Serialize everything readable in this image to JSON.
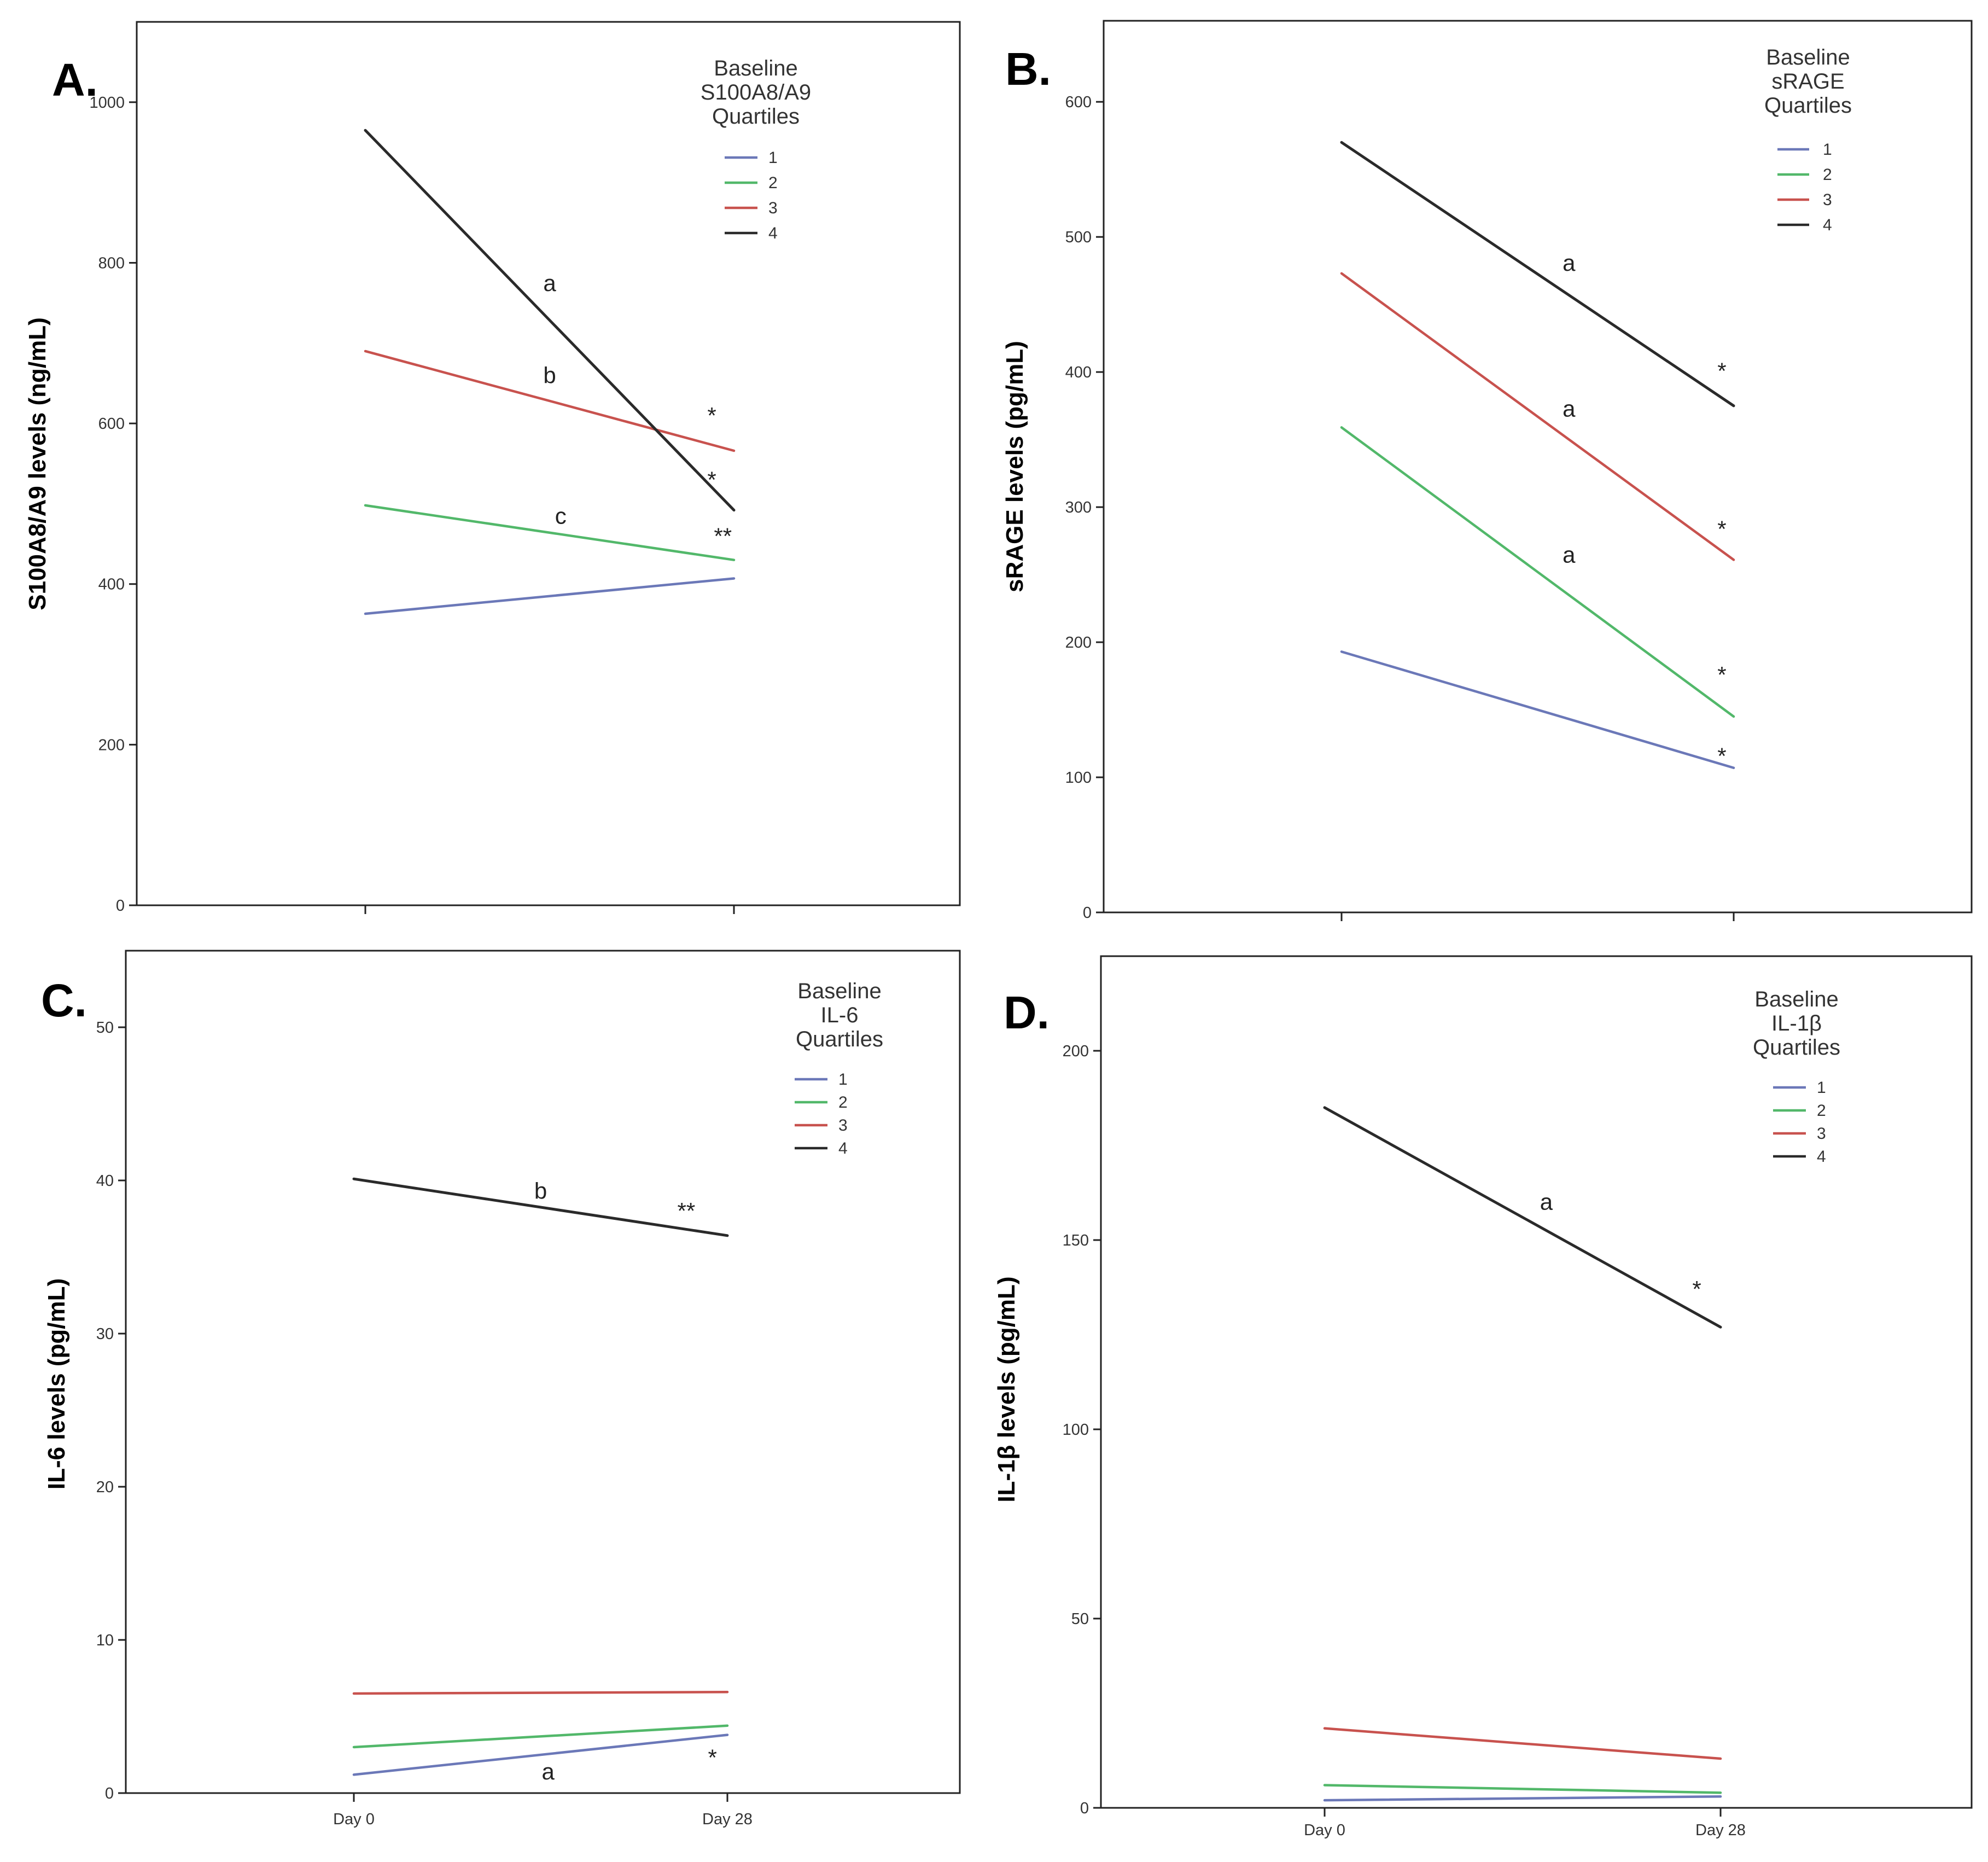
{
  "chart_data": [
    {
      "type": "line",
      "panel_label": "A.",
      "ylabel": "S100A8/A9 levels (ng/mL)",
      "categories": [
        "",
        ""
      ],
      "ylim": [
        0,
        1100
      ],
      "yticks": [
        0,
        200,
        400,
        600,
        800,
        1000
      ],
      "legend": {
        "title": [
          "Baseline",
          "S100A8/A9",
          "Quartiles"
        ],
        "placement": "top-right"
      },
      "series": [
        {
          "name": "1",
          "color": "#6b78b8",
          "values": [
            363,
            407
          ]
        },
        {
          "name": "2",
          "color": "#52b86a",
          "values": [
            498,
            430
          ]
        },
        {
          "name": "3",
          "color": "#c8524e",
          "values": [
            690,
            566
          ]
        },
        {
          "name": "4",
          "color": "#2a2a2a",
          "values": [
            965,
            492
          ]
        }
      ],
      "annotations": [
        {
          "text": "a",
          "x": 0.5,
          "y": 765
        },
        {
          "text": "b",
          "x": 0.5,
          "y": 650
        },
        {
          "text": "c",
          "x": 0.53,
          "y": 475
        },
        {
          "text": "*",
          "x": 0.94,
          "y": 600
        },
        {
          "text": "*",
          "x": 0.94,
          "y": 520
        },
        {
          "text": "**",
          "x": 0.97,
          "y": 450
        }
      ]
    },
    {
      "type": "line",
      "panel_label": "B.",
      "ylabel": "sRAGE levels (pg/mL)",
      "categories": [
        "",
        ""
      ],
      "ylim": [
        0,
        660
      ],
      "yticks": [
        0,
        100,
        200,
        300,
        400,
        500,
        600
      ],
      "legend": {
        "title": [
          "Baseline",
          "sRAGE",
          "Quartiles"
        ],
        "placement": "top-right"
      },
      "series": [
        {
          "name": "1",
          "color": "#6b78b8",
          "values": [
            193,
            107
          ]
        },
        {
          "name": "2",
          "color": "#52b86a",
          "values": [
            359,
            145
          ]
        },
        {
          "name": "3",
          "color": "#c8524e",
          "values": [
            473,
            261
          ]
        },
        {
          "name": "4",
          "color": "#2a2a2a",
          "values": [
            570,
            375
          ]
        }
      ],
      "annotations": [
        {
          "text": "a",
          "x": 0.58,
          "y": 475
        },
        {
          "text": "a",
          "x": 0.58,
          "y": 367
        },
        {
          "text": "a",
          "x": 0.58,
          "y": 259
        },
        {
          "text": "*",
          "x": 0.97,
          "y": 395
        },
        {
          "text": "*",
          "x": 0.97,
          "y": 278
        },
        {
          "text": "*",
          "x": 0.97,
          "y": 170
        },
        {
          "text": "*",
          "x": 0.97,
          "y": 110
        }
      ]
    },
    {
      "type": "line",
      "panel_label": "C.",
      "ylabel": "IL-6 levels (pg/mL)",
      "categories": [
        "Day 0",
        "Day 28"
      ],
      "ylim": [
        0,
        55
      ],
      "yticks": [
        0,
        10,
        20,
        30,
        40,
        50
      ],
      "legend": {
        "title": [
          "Baseline",
          "IL-6",
          "Quartiles"
        ],
        "placement": "top-right"
      },
      "series": [
        {
          "name": "1",
          "color": "#6b78b8",
          "values": [
            1.2,
            3.8
          ]
        },
        {
          "name": "2",
          "color": "#52b86a",
          "values": [
            3.0,
            4.4
          ]
        },
        {
          "name": "3",
          "color": "#c8524e",
          "values": [
            6.5,
            6.6
          ]
        },
        {
          "name": "4",
          "color": "#2a2a2a",
          "values": [
            40.1,
            36.4
          ]
        }
      ],
      "annotations": [
        {
          "text": "b",
          "x": 0.5,
          "y": 38.8
        },
        {
          "text": "**",
          "x": 0.89,
          "y": 37.5
        },
        {
          "text": "a",
          "x": 0.52,
          "y": 0.9
        },
        {
          "text": "*",
          "x": 0.96,
          "y": 1.8
        }
      ]
    },
    {
      "type": "line",
      "panel_label": "D.",
      "ylabel": "IL-1β levels (pg/mL)",
      "categories": [
        "Day 0",
        "Day 28"
      ],
      "ylim": [
        0,
        225
      ],
      "yticks": [
        0,
        50,
        100,
        150,
        200
      ],
      "legend": {
        "title": [
          "Baseline",
          "IL-1β",
          "Quartiles"
        ],
        "placement": "top-right"
      },
      "series": [
        {
          "name": "1",
          "color": "#6b78b8",
          "values": [
            2,
            3
          ]
        },
        {
          "name": "2",
          "color": "#52b86a",
          "values": [
            6,
            4
          ]
        },
        {
          "name": "3",
          "color": "#c8524e",
          "values": [
            21,
            13
          ]
        },
        {
          "name": "4",
          "color": "#2a2a2a",
          "values": [
            185,
            127
          ]
        }
      ],
      "annotations": [
        {
          "text": "a",
          "x": 0.56,
          "y": 158
        },
        {
          "text": "*",
          "x": 0.94,
          "y": 135
        }
      ]
    }
  ]
}
